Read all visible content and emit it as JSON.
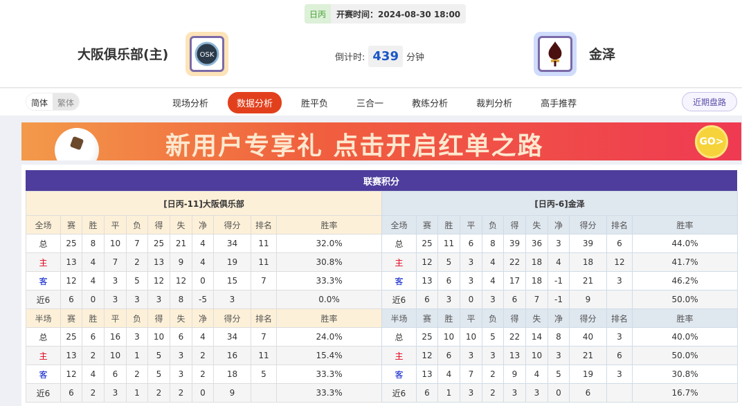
{
  "match": {
    "league": "日丙",
    "kickoff": "开赛时间：2024-08-30 18:00",
    "home_name": "大阪俱乐部(主)",
    "away_name": "金泽",
    "countdown_label": "倒计时:",
    "countdown_value": "439",
    "countdown_unit": "分钟"
  },
  "lang": {
    "simplified": "简体",
    "traditional": "繁体"
  },
  "tabs": [
    "现场分析",
    "数据分析",
    "胜平负",
    "三合一",
    "教练分析",
    "裁判分析",
    "高手推荐"
  ],
  "active_tab": "数据分析",
  "recent_button": "近期盘路",
  "banner": {
    "text": "新用户专享礼  点击开启红单之路",
    "go": "GO>"
  },
  "standings": {
    "title": "联赛积分",
    "columns": [
      "赛",
      "胜",
      "平",
      "负",
      "得",
      "失",
      "净",
      "得分",
      "排名",
      "胜率"
    ],
    "sections": [
      "全场",
      "半场"
    ],
    "row_labels": [
      "总",
      "主",
      "客",
      "近6"
    ],
    "home": {
      "header": "[日丙-11]大阪俱乐部",
      "full": [
        [
          "25",
          "8",
          "10",
          "7",
          "25",
          "21",
          "4",
          "34",
          "11",
          "32.0%"
        ],
        [
          "13",
          "4",
          "7",
          "2",
          "13",
          "9",
          "4",
          "19",
          "11",
          "30.8%"
        ],
        [
          "12",
          "4",
          "3",
          "5",
          "12",
          "12",
          "0",
          "15",
          "7",
          "33.3%"
        ],
        [
          "6",
          "0",
          "3",
          "3",
          "3",
          "8",
          "-5",
          "3",
          "",
          "0.0%"
        ]
      ],
      "half": [
        [
          "25",
          "6",
          "16",
          "3",
          "10",
          "6",
          "4",
          "34",
          "7",
          "24.0%"
        ],
        [
          "13",
          "2",
          "10",
          "1",
          "5",
          "3",
          "2",
          "16",
          "11",
          "15.4%"
        ],
        [
          "12",
          "4",
          "6",
          "2",
          "5",
          "3",
          "2",
          "18",
          "5",
          "33.3%"
        ],
        [
          "6",
          "2",
          "3",
          "1",
          "2",
          "2",
          "0",
          "9",
          "",
          "33.3%"
        ]
      ]
    },
    "away": {
      "header": "[日丙-6]金泽",
      "full": [
        [
          "25",
          "11",
          "6",
          "8",
          "39",
          "36",
          "3",
          "39",
          "6",
          "44.0%"
        ],
        [
          "12",
          "5",
          "3",
          "4",
          "22",
          "18",
          "4",
          "18",
          "12",
          "41.7%"
        ],
        [
          "13",
          "6",
          "3",
          "4",
          "17",
          "18",
          "-1",
          "21",
          "3",
          "46.2%"
        ],
        [
          "6",
          "3",
          "0",
          "3",
          "6",
          "7",
          "-1",
          "9",
          "",
          "50.0%"
        ]
      ],
      "half": [
        [
          "25",
          "10",
          "10",
          "5",
          "22",
          "14",
          "8",
          "40",
          "3",
          "40.0%"
        ],
        [
          "12",
          "6",
          "3",
          "3",
          "13",
          "10",
          "3",
          "21",
          "6",
          "50.0%"
        ],
        [
          "13",
          "4",
          "7",
          "2",
          "9",
          "4",
          "5",
          "19",
          "3",
          "30.8%"
        ],
        [
          "6",
          "1",
          "3",
          "2",
          "3",
          "3",
          "0",
          "6",
          "",
          "16.7%"
        ]
      ]
    }
  },
  "colors": {
    "accent": "#e2401c",
    "title_bar": "#4e3d9c",
    "home_label": "#e0001a",
    "away_label": "#0018c8"
  }
}
